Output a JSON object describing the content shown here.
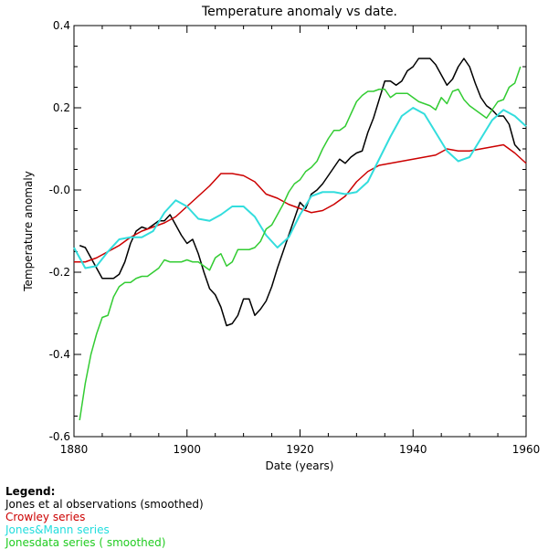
{
  "chart_data": {
    "type": "line",
    "title": "Temperature anomaly vs date.",
    "xlabel": "Date (years)",
    "ylabel": "Temperature anomaly",
    "xlim": [
      1880,
      1960
    ],
    "ylim": [
      -0.6,
      0.4
    ],
    "xticks": [
      1880,
      1900,
      1920,
      1940,
      1960
    ],
    "xtick_labels": [
      "1880",
      "1900",
      "1920",
      "1940",
      "1960"
    ],
    "yticks": [
      -0.6,
      -0.4,
      -0.2,
      0.0,
      0.2,
      0.4
    ],
    "ytick_labels": [
      "-0.6",
      "-0.4",
      "-0.2",
      "-0.0",
      "0.2",
      "0.4"
    ],
    "grid": false,
    "legend": "below-left",
    "series": [
      {
        "name": "Jones et al observations (smoothed)",
        "color": "#000000",
        "x": [
          1881,
          1882,
          1883,
          1884,
          1885,
          1886,
          1887,
          1888,
          1889,
          1890,
          1891,
          1892,
          1893,
          1894,
          1895,
          1896,
          1897,
          1898,
          1899,
          1900,
          1901,
          1902,
          1903,
          1904,
          1905,
          1906,
          1907,
          1908,
          1909,
          1910,
          1911,
          1912,
          1913,
          1914,
          1915,
          1916,
          1917,
          1918,
          1919,
          1920,
          1921,
          1922,
          1923,
          1924,
          1925,
          1926,
          1927,
          1928,
          1929,
          1930,
          1931,
          1932,
          1933,
          1934,
          1935,
          1936,
          1937,
          1938,
          1939,
          1940,
          1941,
          1942,
          1943,
          1944,
          1945,
          1946,
          1947,
          1948,
          1949,
          1950,
          1951,
          1952,
          1953,
          1954,
          1955,
          1956,
          1957,
          1958,
          1959
        ],
        "y": [
          -0.135,
          -0.14,
          -0.165,
          -0.19,
          -0.215,
          -0.215,
          -0.215,
          -0.205,
          -0.175,
          -0.13,
          -0.1,
          -0.09,
          -0.095,
          -0.085,
          -0.075,
          -0.075,
          -0.06,
          -0.085,
          -0.11,
          -0.13,
          -0.12,
          -0.155,
          -0.2,
          -0.24,
          -0.255,
          -0.285,
          -0.33,
          -0.325,
          -0.305,
          -0.265,
          -0.265,
          -0.305,
          -0.29,
          -0.27,
          -0.235,
          -0.19,
          -0.15,
          -0.11,
          -0.07,
          -0.03,
          -0.045,
          -0.01,
          0.0,
          0.015,
          0.035,
          0.055,
          0.075,
          0.065,
          0.08,
          0.09,
          0.095,
          0.14,
          0.175,
          0.22,
          0.265,
          0.265,
          0.255,
          0.265,
          0.29,
          0.3,
          0.32,
          0.32,
          0.32,
          0.305,
          0.28,
          0.255,
          0.27,
          0.3,
          0.32,
          0.3,
          0.26,
          0.225,
          0.205,
          0.195,
          0.18,
          0.18,
          0.16,
          0.11,
          0.095
        ]
      },
      {
        "name": "Crowley series",
        "color": "#cc0000",
        "x": [
          1880,
          1882,
          1884,
          1886,
          1888,
          1890,
          1892,
          1894,
          1896,
          1898,
          1900,
          1902,
          1904,
          1906,
          1908,
          1910,
          1912,
          1914,
          1916,
          1918,
          1920,
          1922,
          1924,
          1926,
          1928,
          1930,
          1932,
          1934,
          1936,
          1938,
          1940,
          1942,
          1944,
          1946,
          1948,
          1950,
          1952,
          1954,
          1956,
          1958,
          1960
        ],
        "y": [
          -0.175,
          -0.175,
          -0.165,
          -0.15,
          -0.135,
          -0.115,
          -0.1,
          -0.09,
          -0.08,
          -0.065,
          -0.04,
          -0.015,
          0.01,
          0.04,
          0.04,
          0.035,
          0.02,
          -0.01,
          -0.02,
          -0.035,
          -0.045,
          -0.055,
          -0.05,
          -0.035,
          -0.015,
          0.02,
          0.045,
          0.06,
          0.065,
          0.07,
          0.075,
          0.08,
          0.085,
          0.1,
          0.095,
          0.095,
          0.1,
          0.105,
          0.11,
          0.09,
          0.065
        ]
      },
      {
        "name": "Jones&Mann series",
        "color": "#33dddd",
        "x": [
          1880,
          1882,
          1884,
          1886,
          1888,
          1890,
          1892,
          1894,
          1896,
          1898,
          1900,
          1902,
          1904,
          1906,
          1908,
          1910,
          1912,
          1914,
          1916,
          1918,
          1920,
          1922,
          1924,
          1926,
          1928,
          1930,
          1932,
          1934,
          1936,
          1938,
          1940,
          1942,
          1944,
          1946,
          1948,
          1950,
          1952,
          1954,
          1956,
          1958,
          1960
        ],
        "y": [
          -0.14,
          -0.19,
          -0.185,
          -0.15,
          -0.12,
          -0.115,
          -0.115,
          -0.1,
          -0.055,
          -0.025,
          -0.04,
          -0.07,
          -0.075,
          -0.06,
          -0.04,
          -0.04,
          -0.065,
          -0.11,
          -0.14,
          -0.115,
          -0.06,
          -0.015,
          -0.005,
          -0.005,
          -0.01,
          -0.005,
          0.02,
          0.075,
          0.13,
          0.18,
          0.2,
          0.185,
          0.14,
          0.095,
          0.07,
          0.08,
          0.125,
          0.17,
          0.195,
          0.18,
          0.155
        ]
      },
      {
        "name": "Jonesdata series ( smoothed)",
        "color": "#33cc33",
        "x": [
          1881,
          1882,
          1883,
          1884,
          1885,
          1886,
          1887,
          1888,
          1889,
          1890,
          1891,
          1892,
          1893,
          1894,
          1895,
          1896,
          1897,
          1898,
          1899,
          1900,
          1901,
          1902,
          1903,
          1904,
          1905,
          1906,
          1907,
          1908,
          1909,
          1910,
          1911,
          1912,
          1913,
          1914,
          1915,
          1916,
          1917,
          1918,
          1919,
          1920,
          1921,
          1922,
          1923,
          1924,
          1925,
          1926,
          1927,
          1928,
          1929,
          1930,
          1931,
          1932,
          1933,
          1934,
          1935,
          1936,
          1937,
          1938,
          1939,
          1940,
          1941,
          1942,
          1943,
          1944,
          1945,
          1946,
          1947,
          1948,
          1949,
          1950,
          1951,
          1952,
          1953,
          1954,
          1955,
          1956,
          1957,
          1958,
          1959
        ],
        "y": [
          -0.56,
          -0.47,
          -0.4,
          -0.35,
          -0.31,
          -0.305,
          -0.26,
          -0.235,
          -0.225,
          -0.225,
          -0.215,
          -0.21,
          -0.21,
          -0.2,
          -0.19,
          -0.17,
          -0.175,
          -0.175,
          -0.175,
          -0.17,
          -0.175,
          -0.175,
          -0.185,
          -0.195,
          -0.165,
          -0.155,
          -0.185,
          -0.175,
          -0.145,
          -0.145,
          -0.145,
          -0.14,
          -0.125,
          -0.095,
          -0.085,
          -0.06,
          -0.035,
          -0.005,
          0.015,
          0.025,
          0.045,
          0.055,
          0.07,
          0.1,
          0.125,
          0.145,
          0.145,
          0.155,
          0.185,
          0.215,
          0.23,
          0.24,
          0.24,
          0.245,
          0.245,
          0.225,
          0.235,
          0.235,
          0.235,
          0.225,
          0.215,
          0.21,
          0.205,
          0.195,
          0.225,
          0.21,
          0.24,
          0.245,
          0.22,
          0.205,
          0.195,
          0.185,
          0.175,
          0.195,
          0.215,
          0.22,
          0.25,
          0.26,
          0.3
        ]
      }
    ]
  },
  "legend": {
    "heading": "Legend:",
    "items": [
      "Jones et al observations (smoothed)",
      "Crowley series",
      "Jones&Mann series",
      "Jonesdata series ( smoothed)"
    ]
  }
}
